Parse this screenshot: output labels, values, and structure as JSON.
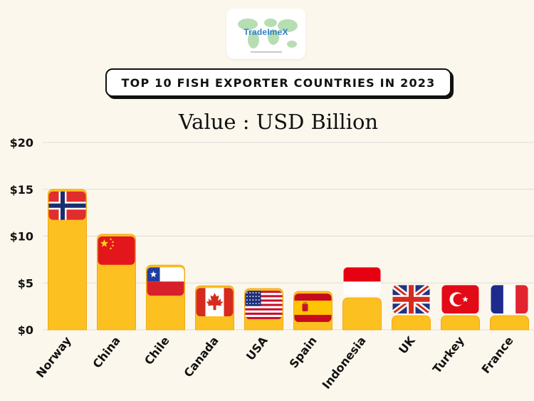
{
  "logo": {
    "text": "TradeImeX"
  },
  "header": {
    "title": "TOP 10 FISH EXPORTER COUNTRIES IN 2023",
    "subtitle": "Value : USD Billion"
  },
  "colors": {
    "bar": "#fcc021",
    "bar_edge": "#f0a91a",
    "background": "#fcf7ec",
    "grid": "#dcdcdc"
  },
  "chart_data": {
    "type": "bar",
    "title": "TOP 10 FISH EXPORTER COUNTRIES IN 2023",
    "subtitle": "Value : USD Billion",
    "categories": [
      "Norway",
      "China",
      "Chile",
      "Canada",
      "USA",
      "Spain",
      "Indonesia",
      "UK",
      "Turkey",
      "France"
    ],
    "values": [
      15.0,
      10.2,
      6.9,
      4.7,
      4.4,
      4.1,
      3.4,
      1.5,
      1.5,
      1.5
    ],
    "flags": [
      "norway-flag-icon",
      "china-flag-icon",
      "chile-flag-icon",
      "canada-flag-icon",
      "usa-flag-icon",
      "spain-flag-icon",
      "indonesia-flag-icon",
      "uk-flag-icon",
      "turkey-flag-icon",
      "france-flag-icon"
    ],
    "yticks": [
      "$0",
      "$5",
      "$10",
      "$15",
      "$20"
    ],
    "ylim": [
      0,
      20
    ],
    "xlabel": "",
    "ylabel": "",
    "grid": true,
    "legend": "none"
  }
}
